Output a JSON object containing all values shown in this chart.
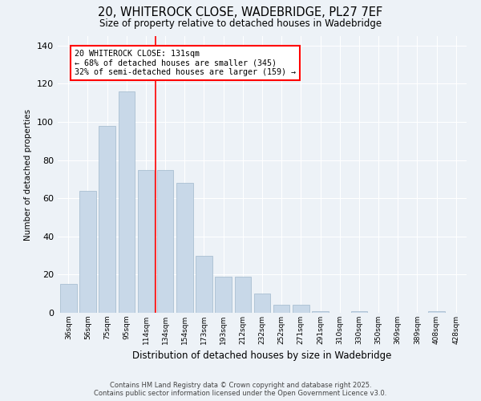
{
  "title_line1": "20, WHITEROCK CLOSE, WADEBRIDGE, PL27 7EF",
  "title_line2": "Size of property relative to detached houses in Wadebridge",
  "xlabel": "Distribution of detached houses by size in Wadebridge",
  "ylabel": "Number of detached properties",
  "bins": [
    "36sqm",
    "56sqm",
    "75sqm",
    "95sqm",
    "114sqm",
    "134sqm",
    "154sqm",
    "173sqm",
    "193sqm",
    "212sqm",
    "232sqm",
    "252sqm",
    "271sqm",
    "291sqm",
    "310sqm",
    "330sqm",
    "350sqm",
    "369sqm",
    "389sqm",
    "408sqm",
    "428sqm"
  ],
  "values": [
    15,
    64,
    98,
    116,
    75,
    75,
    68,
    30,
    19,
    19,
    10,
    4,
    4,
    1,
    0,
    1,
    0,
    0,
    0,
    1,
    0
  ],
  "bar_color": "#c8d8e8",
  "bar_edge_color": "#a0b8cc",
  "vline_x_index": 5,
  "vline_color": "red",
  "annotation_text": "20 WHITEROCK CLOSE: 131sqm\n← 68% of detached houses are smaller (345)\n32% of semi-detached houses are larger (159) →",
  "annotation_box_color": "white",
  "annotation_box_edge_color": "red",
  "ylim": [
    0,
    145
  ],
  "yticks": [
    0,
    20,
    40,
    60,
    80,
    100,
    120,
    140
  ],
  "footer_line1": "Contains HM Land Registry data © Crown copyright and database right 2025.",
  "footer_line2": "Contains public sector information licensed under the Open Government Licence v3.0.",
  "background_color": "#edf2f7",
  "grid_color": "#ffffff",
  "fig_width": 6.0,
  "fig_height": 5.0,
  "dpi": 100
}
